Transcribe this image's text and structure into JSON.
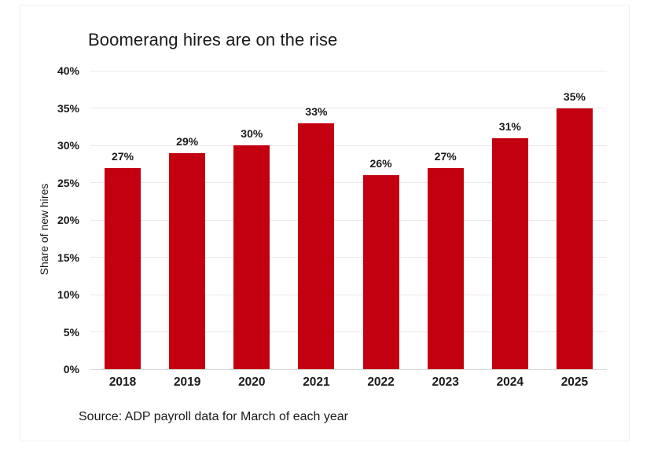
{
  "source_note": "Source: ADP payroll data for March of each year",
  "chart_data": {
    "type": "bar",
    "title": "Boomerang hires are on the rise",
    "categories": [
      "2018",
      "2019",
      "2020",
      "2021",
      "2022",
      "2023",
      "2024",
      "2025"
    ],
    "values": [
      27,
      29,
      30,
      33,
      26,
      27,
      31,
      35
    ],
    "value_labels": [
      "27%",
      "29%",
      "30%",
      "33%",
      "26%",
      "27%",
      "31%",
      "35%"
    ],
    "xlabel": "",
    "ylabel": "Share of new hires",
    "ylim": [
      0,
      40
    ],
    "ytick_step": 5,
    "ytick_labels": [
      "0%",
      "5%",
      "10%",
      "15%",
      "20%",
      "25%",
      "30%",
      "35%",
      "40%"
    ],
    "grid": true,
    "legend": false,
    "colors": {
      "bar": "#c3000f",
      "gridline": "#e9e9e9",
      "axis_line": "#d9d9d9",
      "text": "#1a1a1a",
      "frame_border": "#f0f0f0",
      "background": "#ffffff"
    }
  }
}
